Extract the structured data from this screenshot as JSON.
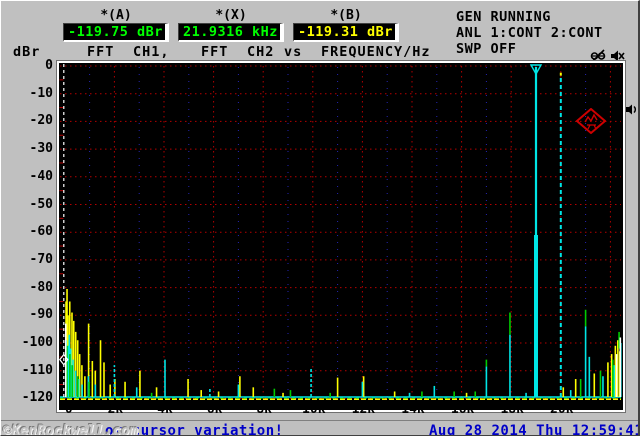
{
  "header": {
    "cursor_a_label": "*(A)",
    "cursor_a_value": "-119.75 dBr",
    "cursor_x_label": "*(X)",
    "cursor_x_value": "21.9316 kHz",
    "cursor_b_label": "*(B)",
    "cursor_b_value": "-119.31 dBr",
    "gen_status": "GEN RUNNING",
    "anl_status": "ANL 1:CONT 2:CONT",
    "swp_status": "SWP OFF",
    "axis_unit": "dBr",
    "trace1_fft": "FFT",
    "trace1_ch": "CH1,",
    "trace2_fft": "FFT",
    "trace2_ch": "CH2",
    "vs_label": "vs",
    "xaxis_label": "FREQUENCY/Hz",
    "icons": [
      "sweep-crossed-icon",
      "mute-icon"
    ]
  },
  "statusbar": {
    "watermark": "©KenRockwell.com",
    "message": "or cursor variation!",
    "datetime": "Aug 28 2014 Thu 12:59:41"
  },
  "side_icon": "speaker-icon",
  "logo": "rs-diamond-logo",
  "colors": {
    "trace1": "#00e6e6",
    "trace2": "#ffff00",
    "overlap": "#00cc00",
    "cursor": "#ffffff",
    "grid_major": "#b40000",
    "grid_minor": "#2a2ac8",
    "readout_green": "#00ff00",
    "readout_yellow": "#ffff00",
    "status_blue": "#0000c8",
    "logo_red": "#cc0000"
  },
  "chart_data": {
    "type": "line",
    "title": "FFT spectrum, CH1 vs CH2, level dBr vs FREQUENCY/Hz",
    "xlabel": "FREQUENCY/Hz",
    "ylabel": "dBr",
    "xlim_hz": [
      0,
      22400
    ],
    "ylim_db": [
      -120,
      0
    ],
    "grid": true,
    "x_major_grid_khz": [
      2,
      4,
      6,
      8,
      10,
      12,
      14,
      16,
      18,
      20,
      22
    ],
    "x_minor_grid_khz": [
      1,
      3,
      5,
      7,
      9,
      11,
      13,
      15,
      17,
      19,
      21
    ],
    "y_grid_db": [
      0,
      -10,
      -20,
      -30,
      -40,
      -50,
      -60,
      -70,
      -80,
      -90,
      -100,
      -110,
      -120
    ],
    "y_minor_tick_db": [
      -5,
      -15,
      -25,
      -35,
      -45,
      -55,
      -65,
      -75,
      -85,
      -95,
      -105,
      -115
    ],
    "x_tick_labels": [
      {
        "f": 0,
        "label": "0"
      },
      {
        "f": 2000,
        "label": "2k"
      },
      {
        "f": 4000,
        "label": "4k"
      },
      {
        "f": 6000,
        "label": "6k"
      },
      {
        "f": 8000,
        "label": "8k"
      },
      {
        "f": 10000,
        "label": "10k"
      },
      {
        "f": 12000,
        "label": "12k"
      },
      {
        "f": 14000,
        "label": "14k"
      },
      {
        "f": 16000,
        "label": "16k"
      },
      {
        "f": 18000,
        "label": "18k"
      },
      {
        "f": 20000,
        "label": "20k"
      }
    ],
    "y_tick_labels": [
      "0",
      "-10",
      "-20",
      "-30",
      "-40",
      "-50",
      "-60",
      "-70",
      "-80",
      "-90",
      "-100",
      "-110",
      "-120"
    ],
    "noise_floor_db": -119.5,
    "series": [
      {
        "name": "FFT CH1",
        "color_key": "trace1"
      },
      {
        "name": "FFT CH2",
        "color_key": "trace2"
      }
    ],
    "main_peak": {
      "f": 19000,
      "top_db": 0,
      "skirt_top_db": -61
    },
    "dashed_peak": {
      "f": 20000,
      "top_db": -3.5
    },
    "cursor_o": {
      "f": 0,
      "marker_db": -106
    },
    "peaks_ch2_yellow": [
      {
        "f": 50,
        "t": -85
      },
      {
        "f": 90,
        "t": -80.5
      },
      {
        "f": 130,
        "t": -90
      },
      {
        "f": 200,
        "t": -85
      },
      {
        "f": 290,
        "t": -89
      },
      {
        "f": 360,
        "t": -92
      },
      {
        "f": 440,
        "t": -96
      },
      {
        "f": 520,
        "t": -99
      },
      {
        "f": 600,
        "t": -104
      },
      {
        "f": 690,
        "t": -108
      },
      {
        "f": 810,
        "t": -112
      },
      {
        "f": 960,
        "t": -93
      },
      {
        "f": 1110,
        "t": -106.5
      },
      {
        "f": 1230,
        "t": -110
      },
      {
        "f": 1440,
        "t": -99
      },
      {
        "f": 1580,
        "t": -107
      },
      {
        "f": 1830,
        "t": -115
      },
      {
        "f": 2020,
        "t": -113
      },
      {
        "f": 2430,
        "t": -114
      },
      {
        "f": 3030,
        "t": -110
      },
      {
        "f": 3700,
        "t": -116
      },
      {
        "f": 4970,
        "t": -113
      },
      {
        "f": 5500,
        "t": -117
      },
      {
        "f": 6200,
        "t": -117.5
      },
      {
        "f": 7060,
        "t": -112
      },
      {
        "f": 7600,
        "t": -116
      },
      {
        "f": 8800,
        "t": -118
      },
      {
        "f": 11000,
        "t": -112.5
      },
      {
        "f": 12050,
        "t": -112
      },
      {
        "f": 13300,
        "t": -117.5
      },
      {
        "f": 16200,
        "t": -118
      },
      {
        "f": 20100,
        "t": -116
      },
      {
        "f": 20600,
        "t": -113
      },
      {
        "f": 21350,
        "t": -111
      },
      {
        "f": 21900,
        "t": -107
      },
      {
        "f": 22050,
        "t": -104
      },
      {
        "f": 22200,
        "t": -101
      },
      {
        "f": 22300,
        "t": -99
      },
      {
        "f": 22380,
        "t": -103
      }
    ],
    "peaks_ch1_cyan": [
      {
        "f": 60,
        "t": -99
      },
      {
        "f": 130,
        "t": -101
      },
      {
        "f": 180,
        "t": -97
      },
      {
        "f": 240,
        "t": -102
      },
      {
        "f": 330,
        "t": -106
      },
      {
        "f": 430,
        "t": -110
      },
      {
        "f": 560,
        "t": -113
      },
      {
        "f": 700,
        "t": -115
      },
      {
        "f": 950,
        "t": -112
      },
      {
        "f": 1230,
        "t": -115
      },
      {
        "f": 2000,
        "t": -108,
        "dash": true
      },
      {
        "f": 2900,
        "t": -116
      },
      {
        "f": 4040,
        "t": -106
      },
      {
        "f": 5850,
        "t": -116,
        "dash": true
      },
      {
        "f": 7000,
        "t": -115
      },
      {
        "f": 9930,
        "t": -109,
        "dash": true
      },
      {
        "f": 12000,
        "t": -114
      },
      {
        "f": 13900,
        "t": -118
      },
      {
        "f": 14900,
        "t": -115.5
      },
      {
        "f": 17000,
        "t": -108.5
      },
      {
        "f": 17950,
        "t": -97
      },
      {
        "f": 18600,
        "t": -118
      },
      {
        "f": 20400,
        "t": -117
      },
      {
        "f": 21000,
        "t": -94
      },
      {
        "f": 21150,
        "t": -105
      },
      {
        "f": 21700,
        "t": -112
      },
      {
        "f": 22150,
        "t": -108
      },
      {
        "f": 22420,
        "t": -100
      }
    ],
    "peaks_overlap_green": [
      {
        "f": 85,
        "t": -101
      },
      {
        "f": 205,
        "t": -104
      },
      {
        "f": 300,
        "t": -108
      },
      {
        "f": 520,
        "t": -112
      },
      {
        "f": 980,
        "t": -114
      },
      {
        "f": 3500,
        "t": -118
      },
      {
        "f": 8450,
        "t": -116.5
      },
      {
        "f": 9100,
        "t": -117
      },
      {
        "f": 10700,
        "t": -118
      },
      {
        "f": 14400,
        "t": -117.5
      },
      {
        "f": 15700,
        "t": -117.5
      },
      {
        "f": 16550,
        "t": -117.5
      },
      {
        "f": 20800,
        "t": -113
      },
      {
        "f": 21600,
        "t": -110
      },
      {
        "f": 22100,
        "t": -106
      },
      {
        "f": 17000,
        "t": -106,
        "b": -108.5
      },
      {
        "f": 17950,
        "t": -89,
        "b": -97
      },
      {
        "f": 21000,
        "t": -88,
        "b": -94
      },
      {
        "f": 22350,
        "t": -96,
        "b": -102
      }
    ],
    "peaks_white": [
      {
        "f": 40,
        "t": -93
      },
      {
        "f": 22250,
        "t": -104
      },
      {
        "f": 22400,
        "t": -98
      }
    ]
  }
}
